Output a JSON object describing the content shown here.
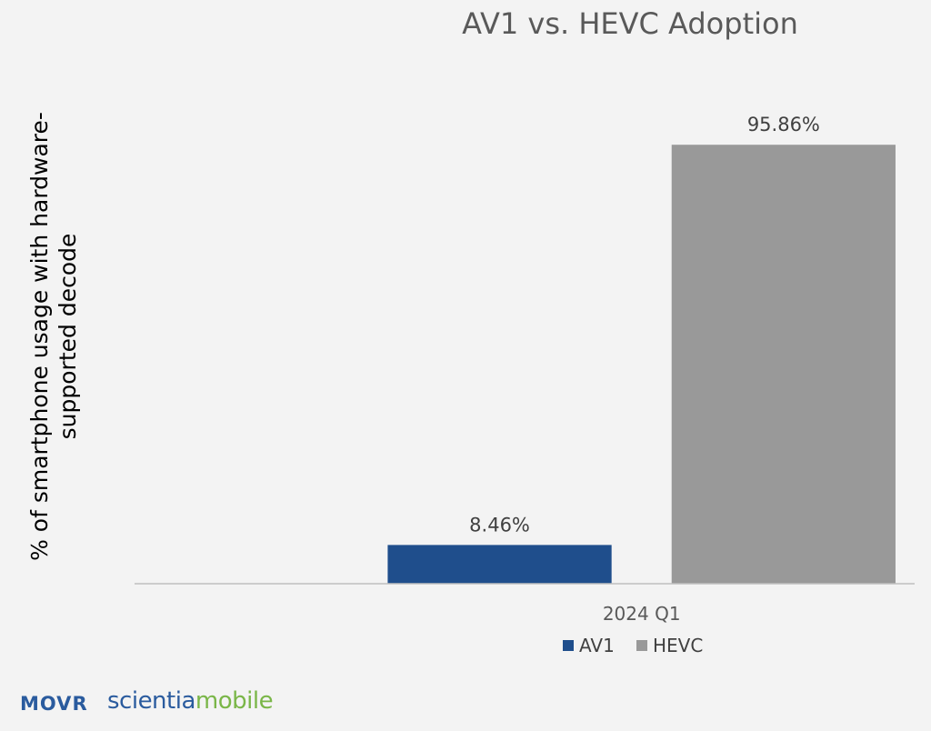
{
  "chart_data": {
    "type": "bar",
    "title": "AV1 vs. HEVC Adoption",
    "ylabel": "% of smartphone usage with hardware-supported decode",
    "ylabel_lines": [
      "% of smartphone usage with hardware-",
      "supported decode"
    ],
    "xlabel": "",
    "categories": [
      "2024 Q1"
    ],
    "series": [
      {
        "name": "AV1",
        "values": [
          8.46
        ],
        "label": "8.46%",
        "color": "#1f4e8c"
      },
      {
        "name": "HEVC",
        "values": [
          95.86
        ],
        "label": "95.86%",
        "color": "#999999"
      }
    ],
    "ylim": [
      0,
      110
    ],
    "grid": false,
    "legend": "bottom-center"
  },
  "branding": {
    "movr": "MOVR",
    "scientia": "scientia",
    "mobile": "mobile"
  }
}
